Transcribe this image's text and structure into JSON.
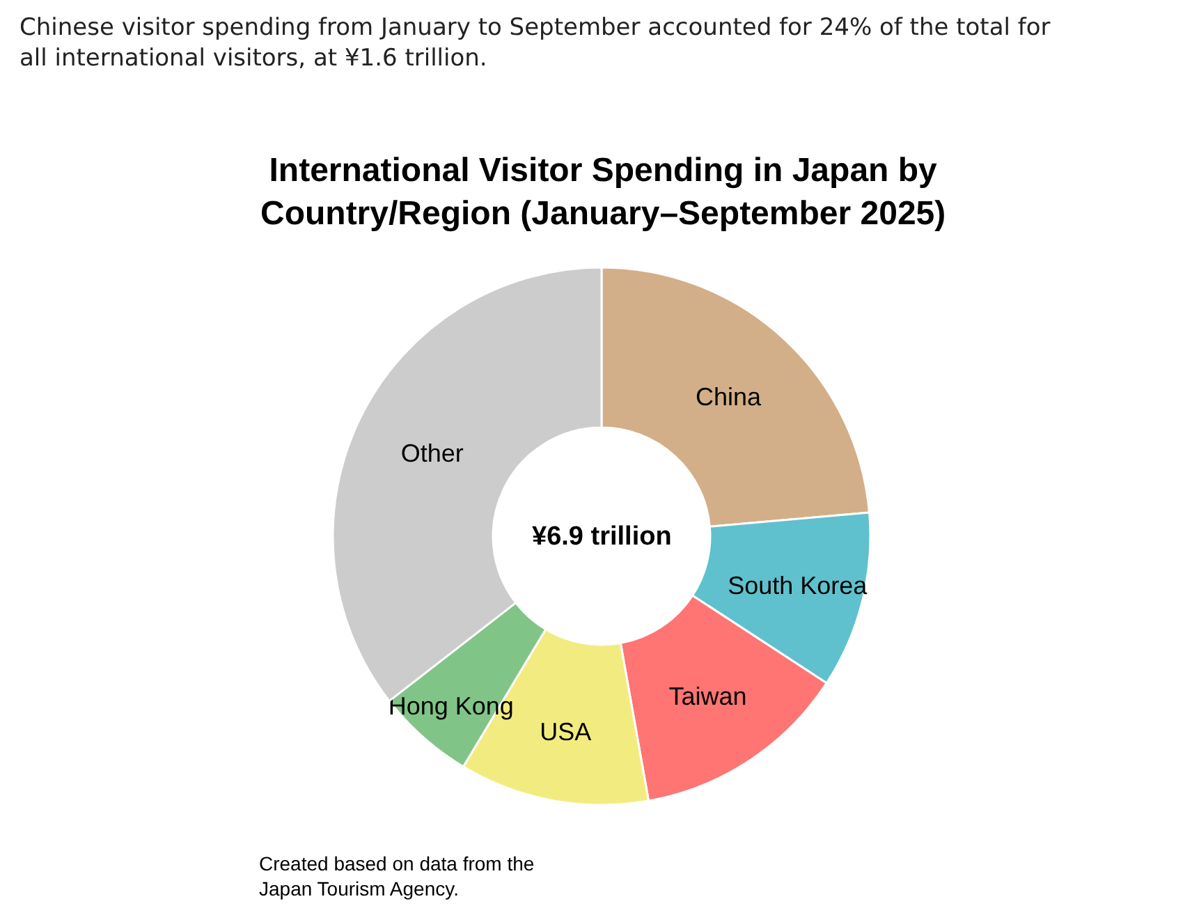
{
  "chart_data": {
    "type": "donut",
    "title": "International Visitor Spending in Japan by\nCountry/Region (January–September 2025)",
    "subtitle": "Chinese visitor spending from January to September accounted for 24% of the total for\nall international visitors, at ¥1.6 trillion.",
    "categories": [
      "China",
      "South Korea",
      "Taiwan",
      "USA",
      "Hong Kong",
      "Other"
    ],
    "values": [
      23.6,
      10.6,
      13.0,
      11.4,
      5.9,
      35.5
    ],
    "colors": [
      "#d2af88",
      "#5fc1cd",
      "#fe7573",
      "#f2ec80",
      "#80c587",
      "#cccccc"
    ],
    "annotations": [
      "¥6.9 trillion",
      "Created based on data from the\nJapan Tourism Agency."
    ]
  }
}
